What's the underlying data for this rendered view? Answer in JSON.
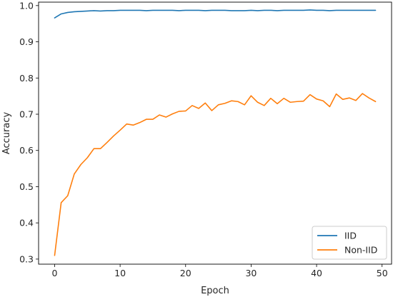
{
  "chart_data": {
    "type": "line",
    "title": "",
    "xlabel": "Epoch",
    "ylabel": "Accuracy",
    "xlim": [
      -2.45,
      51.45
    ],
    "ylim": [
      0.286,
      1.0095
    ],
    "xticks": [
      0,
      10,
      20,
      30,
      40,
      50
    ],
    "yticks": [
      0.3,
      0.4,
      0.5,
      0.6,
      0.7,
      0.8,
      0.9,
      1.0
    ],
    "ytick_labels": [
      "0.3",
      "0.4",
      "0.5",
      "0.6",
      "0.7",
      "0.8",
      "0.9",
      "1.0"
    ],
    "grid": false,
    "legend_position": "bottom-right",
    "x": [
      0,
      1,
      2,
      3,
      4,
      5,
      6,
      7,
      8,
      9,
      10,
      11,
      12,
      13,
      14,
      15,
      16,
      17,
      18,
      19,
      20,
      21,
      22,
      23,
      24,
      25,
      26,
      27,
      28,
      29,
      30,
      31,
      32,
      33,
      34,
      35,
      36,
      37,
      38,
      39,
      40,
      41,
      42,
      43,
      44,
      45,
      46,
      47,
      48,
      49
    ],
    "series": [
      {
        "name": "IID",
        "color": "#1f77b4",
        "values": [
          0.966,
          0.977,
          0.981,
          0.983,
          0.984,
          0.985,
          0.986,
          0.985,
          0.986,
          0.986,
          0.987,
          0.987,
          0.987,
          0.987,
          0.986,
          0.987,
          0.987,
          0.987,
          0.987,
          0.986,
          0.987,
          0.987,
          0.987,
          0.986,
          0.987,
          0.987,
          0.987,
          0.986,
          0.986,
          0.986,
          0.987,
          0.986,
          0.987,
          0.987,
          0.986,
          0.987,
          0.987,
          0.987,
          0.987,
          0.988,
          0.987,
          0.987,
          0.986,
          0.987,
          0.987,
          0.987,
          0.987,
          0.987,
          0.987,
          0.987
        ]
      },
      {
        "name": "Non-IID",
        "color": "#ff7f0e",
        "values": [
          0.31,
          0.456,
          0.475,
          0.535,
          0.561,
          0.58,
          0.605,
          0.605,
          0.622,
          0.64,
          0.656,
          0.673,
          0.67,
          0.677,
          0.686,
          0.686,
          0.698,
          0.692,
          0.701,
          0.708,
          0.709,
          0.724,
          0.716,
          0.731,
          0.71,
          0.726,
          0.73,
          0.737,
          0.735,
          0.726,
          0.751,
          0.733,
          0.724,
          0.744,
          0.729,
          0.744,
          0.733,
          0.735,
          0.736,
          0.754,
          0.742,
          0.737,
          0.721,
          0.756,
          0.741,
          0.745,
          0.738,
          0.757,
          0.745,
          0.735
        ]
      }
    ]
  }
}
